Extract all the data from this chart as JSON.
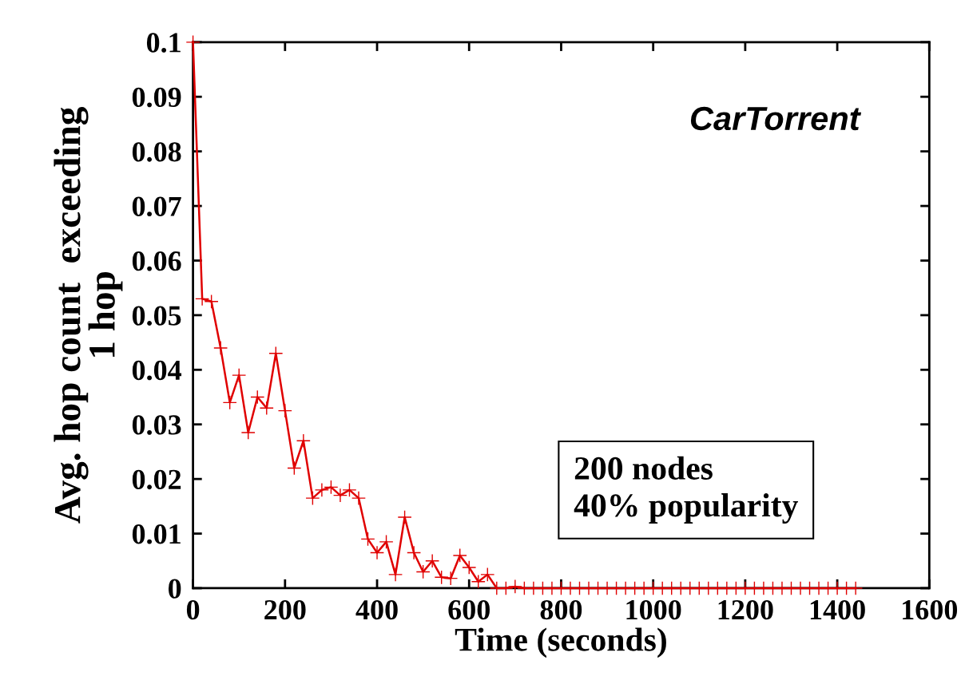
{
  "chart_data": {
    "type": "line",
    "xlabel": "Time (seconds)",
    "ylabel": "Avg. hop count  exceeding\n1 hop",
    "annotations": [
      "CarTorrent",
      "200 nodes\n40% popularity"
    ],
    "x": [
      0,
      20,
      40,
      60,
      80,
      100,
      120,
      140,
      160,
      180,
      200,
      220,
      240,
      260,
      280,
      300,
      320,
      340,
      360,
      380,
      400,
      420,
      440,
      460,
      480,
      500,
      520,
      540,
      560,
      580,
      600,
      620,
      640,
      660,
      680,
      700,
      720,
      740,
      760,
      780,
      800,
      820,
      840,
      860,
      880,
      900,
      920,
      940,
      960,
      980,
      1000,
      1020,
      1040,
      1060,
      1080,
      1100,
      1120,
      1140,
      1160,
      1180,
      1200,
      1220,
      1240,
      1260,
      1280,
      1300,
      1320,
      1340,
      1360,
      1380,
      1400,
      1420,
      1440
    ],
    "series": [
      {
        "color": "#e00000",
        "values": [
          0.1,
          0.053,
          0.0525,
          0.044,
          0.034,
          0.039,
          0.0285,
          0.035,
          0.033,
          0.043,
          0.0325,
          0.022,
          0.027,
          0.0165,
          0.018,
          0.0185,
          0.017,
          0.018,
          0.0165,
          0.009,
          0.0065,
          0.0085,
          0.0025,
          0.013,
          0.0065,
          0.003,
          0.005,
          0.002,
          0.0018,
          0.006,
          0.0038,
          0.0012,
          0.0025,
          0,
          0,
          0.0003,
          0,
          0,
          0,
          0,
          0,
          0,
          0,
          0,
          0,
          0,
          0,
          0,
          0,
          0,
          0,
          0,
          0,
          0,
          0,
          0,
          0,
          0,
          0,
          0,
          0,
          0,
          0,
          0,
          0,
          0,
          0,
          0,
          0,
          0,
          0,
          0,
          0
        ]
      }
    ],
    "xlim": [
      0,
      1600
    ],
    "xticks": [
      0,
      200,
      400,
      600,
      800,
      1000,
      1200,
      1400,
      1600
    ],
    "ylim": [
      0,
      0.1
    ],
    "yticks": [
      0,
      0.01,
      0.02,
      0.03,
      0.04,
      0.05,
      0.06,
      0.07,
      0.08,
      0.09,
      0.1
    ],
    "marker": "cross",
    "line_style": "solid",
    "grid": false,
    "legend": false
  }
}
